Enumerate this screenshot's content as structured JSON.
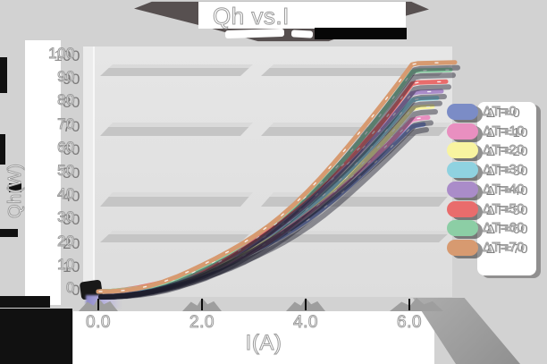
{
  "title": {
    "text": "Qh vs.I"
  },
  "y_axis": {
    "label": "Qh(W)",
    "ticks": [
      "100",
      "90",
      "80",
      "70",
      "60",
      "50",
      "40",
      "30",
      "20",
      "10",
      "0"
    ]
  },
  "x_axis": {
    "label": "I(A)",
    "ticks": [
      "0.0",
      "2.0",
      "4.0",
      "6.0"
    ]
  },
  "legend": {
    "position": "right",
    "items": [
      {
        "label": "ΔT=0",
        "color": "#7b8cc6"
      },
      {
        "label": "ΔT=10",
        "color": "#e98fc0"
      },
      {
        "label": "ΔT=20",
        "color": "#f8f4a0"
      },
      {
        "label": "ΔT=30",
        "color": "#8fd2e0"
      },
      {
        "label": "ΔT=40",
        "color": "#aa8cc9"
      },
      {
        "label": "ΔT=50",
        "color": "#e96c6c"
      },
      {
        "label": "ΔT=60",
        "color": "#8ccea5"
      },
      {
        "label": "ΔT=70",
        "color": "#d79a70"
      }
    ]
  },
  "palette": {
    "background": "#d2d2d2",
    "wall": "#e2e2e2",
    "text_outline": "#9b9b9b",
    "shadow": "#575050"
  },
  "chart_data": {
    "type": "line",
    "title": "Qh vs.I",
    "xlabel": "I(A)",
    "ylabel": "Qh(W)",
    "x": [
      0,
      1,
      2,
      3,
      4,
      5,
      6
    ],
    "xlim": [
      0,
      6.5
    ],
    "ylim": [
      0,
      100
    ],
    "grid": "horizontal",
    "legend_position": "right",
    "series": [
      {
        "name": "ΔT=0",
        "color": "#7b8cc6",
        "values": [
          0,
          2,
          8,
          17,
          31,
          48,
          70
        ]
      },
      {
        "name": "ΔT=10",
        "color": "#e98fc0",
        "values": [
          0,
          2,
          8,
          18,
          32,
          51,
          74
        ]
      },
      {
        "name": "ΔT=20",
        "color": "#f8f4a0",
        "values": [
          0,
          2,
          9,
          19,
          34,
          53,
          78
        ]
      },
      {
        "name": "ΔT=30",
        "color": "#8fd2e0",
        "values": [
          0,
          2,
          9,
          20,
          35,
          55,
          81
        ]
      },
      {
        "name": "ΔT=40",
        "color": "#aa8cc9",
        "values": [
          0,
          2,
          9,
          21,
          37,
          58,
          85
        ]
      },
      {
        "name": "ΔT=50",
        "color": "#e96c6c",
        "values": [
          0,
          2,
          10,
          22,
          39,
          61,
          89
        ]
      },
      {
        "name": "ΔT=60",
        "color": "#8ccea5",
        "values": [
          0,
          3,
          10,
          23,
          41,
          63,
          93
        ]
      },
      {
        "name": "ΔT=70",
        "color": "#d79a70",
        "values": [
          0,
          3,
          11,
          24,
          42,
          66,
          97
        ]
      }
    ]
  }
}
